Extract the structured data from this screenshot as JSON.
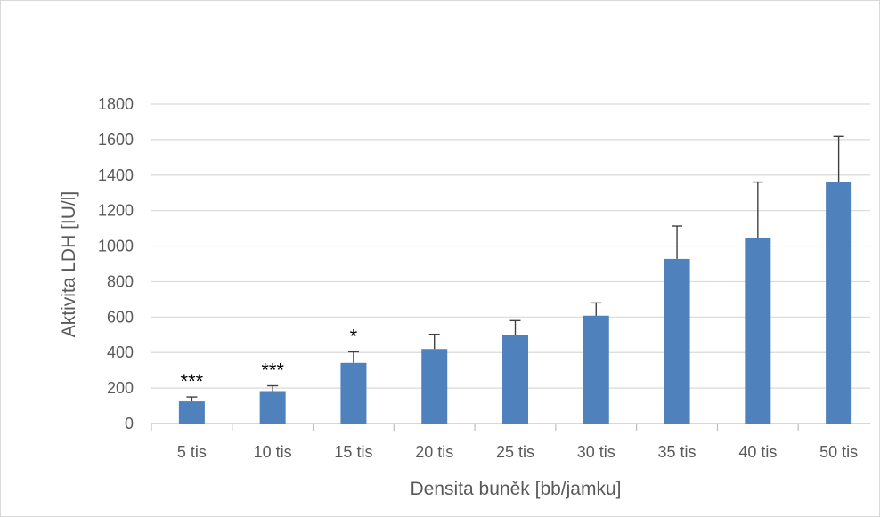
{
  "chart_data": {
    "type": "bar",
    "title": "",
    "xlabel": "Densita buněk [bb/jamku]",
    "ylabel": "Aktivita LDH [IU/l]",
    "categories": [
      "5 tis",
      "10 tis",
      "15 tis",
      "20 tis",
      "25 tis",
      "30 tis",
      "35 tis",
      "40 tis",
      "50 tis"
    ],
    "values": [
      125,
      183,
      342,
      420,
      500,
      608,
      928,
      1043,
      1363
    ],
    "error_upper": [
      25,
      30,
      62,
      83,
      80,
      72,
      185,
      318,
      255
    ],
    "significance": [
      "***",
      "***",
      "*",
      "",
      "",
      "",
      "",
      "",
      ""
    ],
    "yticks": [
      0,
      200,
      400,
      600,
      800,
      1000,
      1200,
      1400,
      1600,
      1800
    ],
    "ylim": [
      0,
      1800
    ],
    "grid": true,
    "legend": "none",
    "colors": {
      "bar": "#4f81bd",
      "grid": "#d9d9d9",
      "axis": "#bfbfbf",
      "error": "#404040",
      "text": "#595959"
    }
  }
}
